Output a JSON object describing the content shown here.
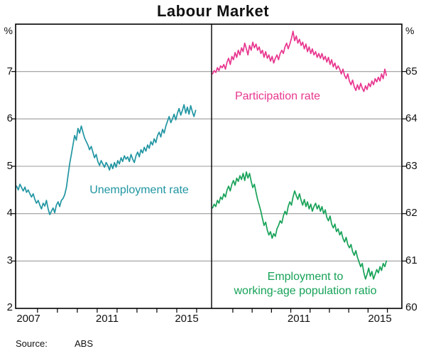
{
  "title": "Labour Market",
  "source": {
    "label": "Source:",
    "value": "ABS"
  },
  "axes": {
    "left_unit": "%",
    "right_unit": "%",
    "left_ticks": [
      "7",
      "6",
      "5",
      "4",
      "3",
      "2"
    ],
    "right_ticks": [
      "65",
      "64",
      "63",
      "62",
      "61",
      "60"
    ],
    "left_years": [
      "2007",
      "2011",
      "2015"
    ],
    "right_years": [
      "2011",
      "2015"
    ]
  },
  "series_labels": {
    "unemployment": "Unemployment rate",
    "participation": "Participation rate",
    "employment_line1": "Employment to",
    "employment_line2": "working-age population ratio"
  },
  "colors": {
    "unemployment": "#2095a2",
    "participation": "#e8368f",
    "employment": "#17a258",
    "grid": "#9b9b9b",
    "frame": "#000000"
  },
  "chart_data": [
    {
      "type": "line",
      "panel": "left",
      "title": "Labour Market",
      "ylabel": "%",
      "ylim": [
        2,
        8
      ],
      "yticks": [
        2,
        3,
        4,
        5,
        6,
        7
      ],
      "year_labels": [
        "2007",
        "2011",
        "2015"
      ],
      "x_start": 2006.5,
      "x_step": 0.0833,
      "series": [
        {
          "name": "Unemployment rate",
          "color": "#2095a2",
          "values": [
            4.58,
            4.5,
            4.62,
            4.55,
            4.48,
            4.56,
            4.45,
            4.5,
            4.42,
            4.35,
            4.42,
            4.3,
            4.22,
            4.28,
            4.18,
            4.1,
            4.22,
            4.16,
            4.28,
            4.1,
            3.98,
            4.05,
            4.12,
            4.02,
            4.18,
            4.25,
            4.15,
            4.28,
            4.32,
            4.4,
            4.55,
            4.8,
            5.05,
            5.25,
            5.45,
            5.65,
            5.55,
            5.8,
            5.7,
            5.85,
            5.72,
            5.6,
            5.52,
            5.45,
            5.35,
            5.42,
            5.3,
            5.18,
            5.25,
            5.1,
            5.02,
            5.12,
            5.05,
            4.98,
            5.08,
            5.02,
            4.92,
            5.05,
            4.95,
            5.08,
            4.98,
            5.12,
            5.05,
            5.18,
            5.1,
            5.22,
            5.15,
            5.2,
            5.1,
            5.25,
            5.15,
            5.08,
            5.22,
            5.3,
            5.2,
            5.35,
            5.28,
            5.4,
            5.32,
            5.45,
            5.38,
            5.52,
            5.45,
            5.58,
            5.5,
            5.65,
            5.72,
            5.62,
            5.78,
            5.7,
            5.85,
            5.95,
            6.05,
            5.92,
            6.0,
            6.1,
            5.98,
            6.12,
            6.22,
            6.08,
            6.18,
            6.3,
            6.12,
            6.25,
            6.1,
            6.28,
            6.15,
            6.05,
            6.18
          ]
        }
      ]
    },
    {
      "type": "line",
      "panel": "right",
      "ylabel": "%",
      "ylim": [
        60,
        66
      ],
      "yticks": [
        60,
        61,
        62,
        63,
        64,
        65
      ],
      "year_labels": [
        "2011",
        "2015"
      ],
      "x_start": 2006.5,
      "x_step": 0.0833,
      "series": [
        {
          "name": "Participation rate",
          "color": "#e8368f",
          "values": [
            64.95,
            65.02,
            64.98,
            65.08,
            65.02,
            65.12,
            65.08,
            65.15,
            65.05,
            65.2,
            65.28,
            65.15,
            65.32,
            65.25,
            65.4,
            65.3,
            65.45,
            65.35,
            65.5,
            65.42,
            65.6,
            65.48,
            65.35,
            65.55,
            65.45,
            65.62,
            65.5,
            65.58,
            65.45,
            65.52,
            65.38,
            65.45,
            65.3,
            65.42,
            65.28,
            65.35,
            65.22,
            65.32,
            65.18,
            65.28,
            65.35,
            65.25,
            65.38,
            65.45,
            65.38,
            65.52,
            65.6,
            65.48,
            65.58,
            65.7,
            65.85,
            65.65,
            65.75,
            65.6,
            65.68,
            65.55,
            65.62,
            65.48,
            65.58,
            65.42,
            65.52,
            65.38,
            65.48,
            65.35,
            65.42,
            65.3,
            65.38,
            65.28,
            65.38,
            65.25,
            65.32,
            65.2,
            65.3,
            65.15,
            65.25,
            65.1,
            65.18,
            65.05,
            65.12,
            65.05,
            64.95,
            65.05,
            64.92,
            64.85,
            64.95,
            64.8,
            64.72,
            64.82,
            64.68,
            64.6,
            64.72,
            64.62,
            64.75,
            64.65,
            64.58,
            64.7,
            64.62,
            64.75,
            64.68,
            64.8,
            64.72,
            64.85,
            64.78,
            64.88,
            64.8,
            64.95,
            64.85,
            65.05,
            64.92
          ]
        },
        {
          "name": "Employment to working-age population ratio",
          "color": "#17a258",
          "values": [
            62.12,
            62.2,
            62.15,
            62.28,
            62.22,
            62.35,
            62.3,
            62.42,
            62.35,
            62.5,
            62.58,
            62.48,
            62.62,
            62.7,
            62.6,
            62.75,
            62.68,
            62.8,
            62.72,
            62.85,
            62.7,
            62.88,
            62.75,
            62.85,
            62.68,
            62.55,
            62.62,
            62.45,
            62.3,
            62.18,
            62.05,
            61.9,
            61.75,
            61.82,
            61.65,
            61.55,
            61.62,
            61.48,
            61.58,
            61.52,
            61.68,
            61.75,
            61.85,
            61.8,
            61.95,
            62.05,
            61.98,
            62.15,
            62.25,
            62.18,
            62.35,
            62.48,
            62.38,
            62.3,
            62.42,
            62.28,
            62.18,
            62.3,
            62.15,
            62.25,
            62.1,
            62.2,
            62.05,
            62.15,
            62.22,
            62.1,
            62.18,
            62.05,
            62.15,
            62.0,
            62.08,
            61.92,
            61.85,
            61.95,
            61.78,
            61.7,
            61.78,
            61.62,
            61.68,
            61.55,
            61.62,
            61.48,
            61.4,
            61.5,
            61.35,
            61.28,
            61.35,
            61.2,
            61.12,
            61.22,
            61.08,
            60.98,
            60.88,
            60.95,
            60.75,
            60.62,
            60.72,
            60.85,
            60.68,
            60.78,
            60.62,
            60.72,
            60.82,
            60.75,
            60.88,
            60.8,
            60.95,
            60.88,
            61.0
          ]
        }
      ]
    }
  ]
}
